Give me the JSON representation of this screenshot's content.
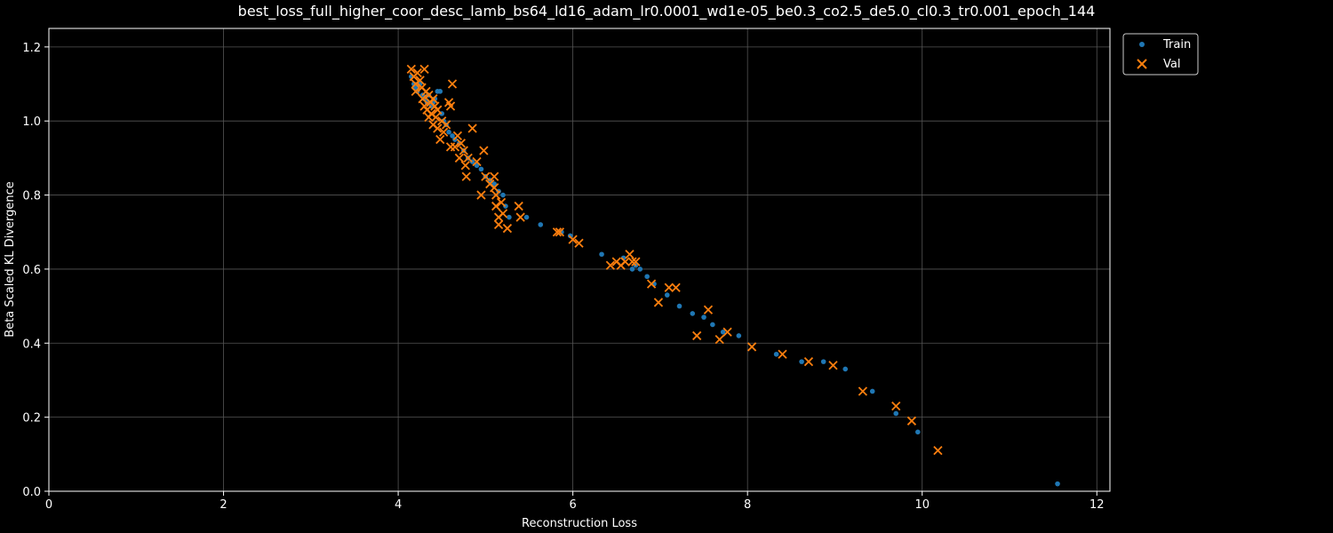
{
  "chart_data": {
    "type": "scatter",
    "title": "best_loss_full_higher_coor_desc_lamb_bs64_ld16_adam_lr0.0001_wd1e-05_be0.3_co2.5_de5.0_cl0.3_tr0.001_epoch_144",
    "xlabel": "Reconstruction Loss",
    "ylabel": "Beta Scaled KL Divergence",
    "xlim": [
      0,
      12.15
    ],
    "ylim": [
      0,
      1.25
    ],
    "xticks": [
      "0",
      "2",
      "4",
      "6",
      "8",
      "10",
      "12"
    ],
    "yticks": [
      "0.0",
      "0.2",
      "0.4",
      "0.6",
      "0.8",
      "1.0",
      "1.2"
    ],
    "grid": true,
    "legend_position": "outside-top-right",
    "series": [
      {
        "name": "Train",
        "marker": "dot",
        "color": "#1f77b4",
        "points": [
          [
            4.15,
            1.12
          ],
          [
            4.18,
            1.1
          ],
          [
            4.2,
            1.09
          ],
          [
            4.22,
            1.08
          ],
          [
            4.25,
            1.1
          ],
          [
            4.28,
            1.07
          ],
          [
            4.3,
            1.06
          ],
          [
            4.33,
            1.05
          ],
          [
            4.35,
            1.07
          ],
          [
            4.38,
            1.04
          ],
          [
            4.4,
            1.05
          ],
          [
            4.42,
            1.06
          ],
          [
            4.45,
            1.08
          ],
          [
            4.48,
            1.08
          ],
          [
            4.5,
            1.02
          ],
          [
            4.52,
            1.0
          ],
          [
            4.55,
            0.99
          ],
          [
            4.58,
            0.97
          ],
          [
            4.62,
            0.96
          ],
          [
            4.65,
            0.95
          ],
          [
            4.7,
            0.94
          ],
          [
            4.75,
            0.92
          ],
          [
            4.8,
            0.9
          ],
          [
            4.85,
            0.89
          ],
          [
            4.9,
            0.88
          ],
          [
            4.95,
            0.87
          ],
          [
            5.0,
            0.85
          ],
          [
            5.05,
            0.84
          ],
          [
            5.1,
            0.83
          ],
          [
            5.15,
            0.81
          ],
          [
            5.2,
            0.8
          ],
          [
            5.23,
            0.77
          ],
          [
            5.27,
            0.74
          ],
          [
            5.47,
            0.74
          ],
          [
            5.63,
            0.72
          ],
          [
            5.87,
            0.7
          ],
          [
            5.97,
            0.69
          ],
          [
            6.33,
            0.64
          ],
          [
            6.58,
            0.63
          ],
          [
            6.68,
            0.6
          ],
          [
            6.72,
            0.61
          ],
          [
            6.77,
            0.6
          ],
          [
            6.85,
            0.58
          ],
          [
            6.93,
            0.56
          ],
          [
            7.08,
            0.53
          ],
          [
            7.22,
            0.5
          ],
          [
            7.37,
            0.48
          ],
          [
            7.5,
            0.47
          ],
          [
            7.6,
            0.45
          ],
          [
            7.72,
            0.43
          ],
          [
            7.9,
            0.42
          ],
          [
            8.33,
            0.37
          ],
          [
            8.62,
            0.35
          ],
          [
            8.87,
            0.35
          ],
          [
            9.12,
            0.33
          ],
          [
            9.43,
            0.27
          ],
          [
            9.7,
            0.21
          ],
          [
            9.95,
            0.16
          ],
          [
            11.55,
            0.02
          ]
        ]
      },
      {
        "name": "Val",
        "marker": "x",
        "color": "#ff7f0e",
        "points": [
          [
            4.15,
            1.14
          ],
          [
            4.18,
            1.12
          ],
          [
            4.2,
            1.1
          ],
          [
            4.2,
            1.08
          ],
          [
            4.22,
            1.13
          ],
          [
            4.25,
            1.11
          ],
          [
            4.27,
            1.09
          ],
          [
            4.28,
            1.06
          ],
          [
            4.3,
            1.14
          ],
          [
            4.3,
            1.04
          ],
          [
            4.32,
            1.08
          ],
          [
            4.33,
            1.03
          ],
          [
            4.35,
            1.07
          ],
          [
            4.35,
            1.01
          ],
          [
            4.37,
            1.05
          ],
          [
            4.38,
            1.02
          ],
          [
            4.4,
            1.06
          ],
          [
            4.4,
            0.99
          ],
          [
            4.42,
            1.04
          ],
          [
            4.43,
            1.01
          ],
          [
            4.45,
            1.03
          ],
          [
            4.45,
            0.98
          ],
          [
            4.48,
            0.95
          ],
          [
            4.5,
            1.0
          ],
          [
            4.52,
            0.97
          ],
          [
            4.55,
            0.99
          ],
          [
            4.58,
            1.05
          ],
          [
            4.6,
            1.04
          ],
          [
            4.62,
            1.1
          ],
          [
            4.6,
            0.93
          ],
          [
            4.65,
            0.93
          ],
          [
            4.68,
            0.96
          ],
          [
            4.7,
            0.9
          ],
          [
            4.72,
            0.94
          ],
          [
            4.75,
            0.92
          ],
          [
            4.77,
            0.88
          ],
          [
            4.78,
            0.85
          ],
          [
            4.8,
            0.9
          ],
          [
            4.85,
            0.98
          ],
          [
            4.9,
            0.89
          ],
          [
            4.95,
            0.8
          ],
          [
            4.98,
            0.92
          ],
          [
            5.0,
            0.85
          ],
          [
            5.05,
            0.83
          ],
          [
            5.1,
            0.82
          ],
          [
            5.1,
            0.85
          ],
          [
            5.12,
            0.8
          ],
          [
            5.12,
            0.77
          ],
          [
            5.15,
            0.74
          ],
          [
            5.15,
            0.72
          ],
          [
            5.18,
            0.78
          ],
          [
            5.2,
            0.75
          ],
          [
            5.25,
            0.71
          ],
          [
            5.38,
            0.77
          ],
          [
            5.4,
            0.74
          ],
          [
            5.82,
            0.7
          ],
          [
            5.85,
            0.7
          ],
          [
            6.0,
            0.68
          ],
          [
            6.07,
            0.67
          ],
          [
            6.43,
            0.61
          ],
          [
            6.5,
            0.62
          ],
          [
            6.55,
            0.61
          ],
          [
            6.6,
            0.62
          ],
          [
            6.65,
            0.64
          ],
          [
            6.68,
            0.62
          ],
          [
            6.72,
            0.62
          ],
          [
            6.9,
            0.56
          ],
          [
            6.98,
            0.51
          ],
          [
            7.1,
            0.55
          ],
          [
            7.18,
            0.55
          ],
          [
            7.42,
            0.42
          ],
          [
            7.55,
            0.49
          ],
          [
            7.68,
            0.41
          ],
          [
            7.77,
            0.43
          ],
          [
            8.05,
            0.39
          ],
          [
            8.4,
            0.37
          ],
          [
            8.7,
            0.35
          ],
          [
            8.98,
            0.34
          ],
          [
            9.32,
            0.27
          ],
          [
            9.7,
            0.23
          ],
          [
            9.88,
            0.19
          ],
          [
            10.18,
            0.11
          ]
        ]
      }
    ]
  }
}
